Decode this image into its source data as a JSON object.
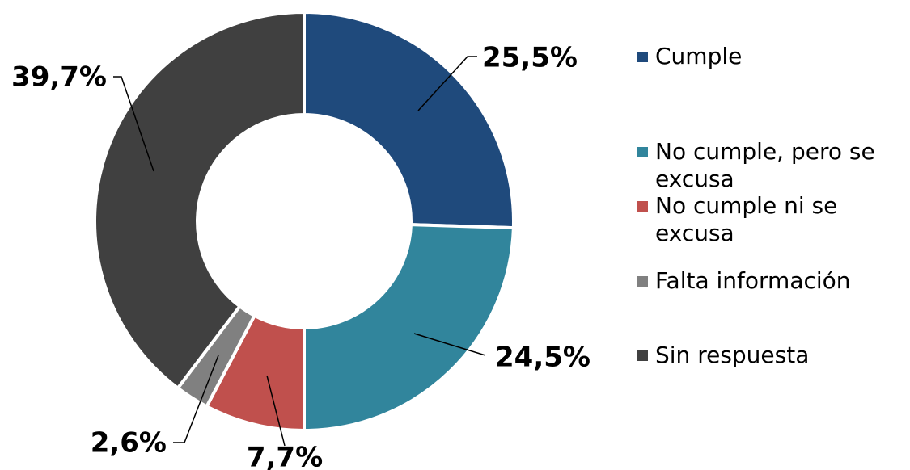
{
  "chart_data": {
    "type": "donut",
    "categories": [
      "Cumple",
      "No cumple, pero se excusa",
      "No cumple ni se excusa",
      "Falta información",
      "Sin respuesta"
    ],
    "values": [
      25.5,
      24.5,
      7.7,
      2.6,
      39.7
    ],
    "value_labels": [
      "25,5%",
      "24,5%",
      "7,7%",
      "2,6%",
      "39,7%"
    ],
    "colors": [
      "#1f4a7c",
      "#31859c",
      "#c0504d",
      "#808080",
      "#404040"
    ],
    "legend": "right"
  }
}
